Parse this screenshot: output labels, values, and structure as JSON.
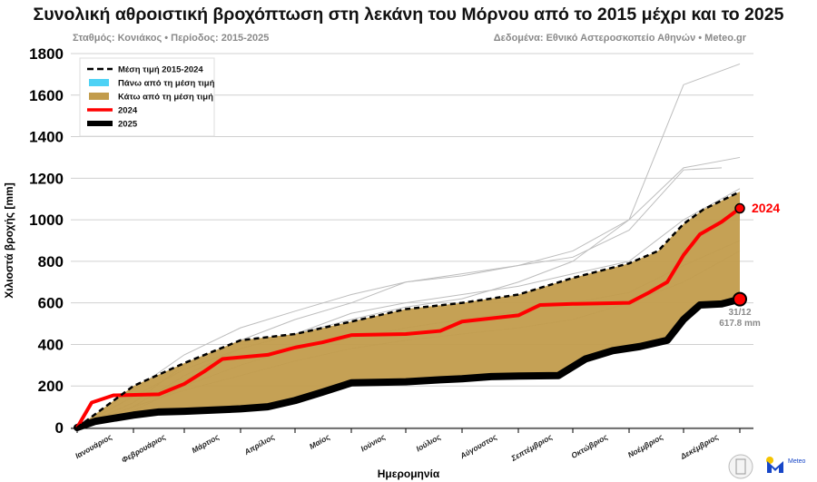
{
  "title": "Συνολική αθροιστική βροχόπτωση στη λεκάνη του Μόρνου από το 2015 μέχρι και το 2025",
  "subtitle_left": "Σταθμός: Κονιάκος • Περίοδος: 2015-2025",
  "subtitle_right": "Δεδομένα: Εθνικό Αστεροσκοπείο Αθηνών • Meteo.gr",
  "logo_text": "Meteo",
  "chart_data": {
    "type": "line",
    "xlabel": "Ημερομηνία",
    "ylabel": "Χιλιοστά βροχής [mm]",
    "ylim": [
      0,
      1800
    ],
    "yticks": [
      0,
      200,
      400,
      600,
      800,
      1000,
      1200,
      1400,
      1600,
      1800
    ],
    "grid": true,
    "legend_position": "top-left",
    "x_tick_labels": [
      "Ιανουάριος",
      "Φεβρουάριος",
      "Μάρτιος",
      "Απρίλιος",
      "Μαίος",
      "Ιούνιος",
      "Ιούλιος",
      "Αύγουστος",
      "Σεπτέμβριος",
      "Οκτώβριος",
      "Νοέμβριος",
      "Δεκέμβριος"
    ],
    "legend": [
      {
        "label": "Μέση τιμή 2015-2024",
        "style": "dashed",
        "color": "#000000"
      },
      {
        "label": "Πάνω από τη μέση τιμή",
        "style": "fill",
        "color": "#4dd2f5"
      },
      {
        "label": "Κάτω από τη μέση τιμή",
        "style": "fill",
        "color": "#c29c4c"
      },
      {
        "label": "2024",
        "style": "line",
        "color": "#ff0000"
      },
      {
        "label": "2025",
        "style": "line",
        "color": "#000000"
      }
    ],
    "mean": {
      "day": [
        0,
        31,
        59,
        90,
        120,
        151,
        181,
        212,
        243,
        273,
        304,
        320,
        334,
        345,
        365
      ],
      "value": [
        0,
        200,
        310,
        420,
        450,
        510,
        570,
        600,
        640,
        720,
        790,
        850,
        980,
        1050,
        1135
      ]
    },
    "series_2024": {
      "day": [
        0,
        8,
        20,
        45,
        59,
        70,
        80,
        105,
        120,
        135,
        151,
        181,
        200,
        212,
        243,
        255,
        273,
        304,
        315,
        325,
        334,
        343,
        355,
        365
      ],
      "value": [
        0,
        120,
        155,
        160,
        210,
        270,
        330,
        350,
        385,
        410,
        445,
        450,
        465,
        510,
        540,
        590,
        595,
        600,
        650,
        700,
        830,
        930,
        990,
        1055
      ]
    },
    "series_2025": {
      "day": [
        0,
        10,
        31,
        45,
        59,
        90,
        105,
        120,
        135,
        151,
        181,
        200,
        212,
        228,
        243,
        265,
        280,
        295,
        310,
        325,
        334,
        343,
        355,
        365
      ],
      "value": [
        0,
        30,
        60,
        75,
        78,
        90,
        100,
        130,
        170,
        215,
        220,
        230,
        235,
        245,
        248,
        250,
        330,
        370,
        390,
        420,
        520,
        590,
        595,
        617.8
      ]
    },
    "other_years": [
      {
        "day": [
          0,
          31,
          59,
          90,
          120,
          151,
          181,
          212,
          243,
          273,
          304,
          334,
          365
        ],
        "value": [
          0,
          150,
          280,
          380,
          450,
          520,
          580,
          620,
          700,
          800,
          1000,
          1650,
          1750
        ]
      },
      {
        "day": [
          0,
          31,
          59,
          90,
          120,
          151,
          181,
          212,
          243,
          273,
          304,
          334,
          365
        ],
        "value": [
          0,
          180,
          350,
          480,
          560,
          640,
          700,
          730,
          780,
          850,
          1000,
          1250,
          1300
        ]
      },
      {
        "day": [
          0,
          31,
          59,
          90,
          120,
          151,
          181,
          212,
          243,
          273,
          304,
          334,
          355
        ],
        "value": [
          0,
          120,
          300,
          420,
          520,
          600,
          700,
          740,
          780,
          820,
          950,
          1240,
          1250
        ]
      },
      {
        "day": [
          0,
          31,
          59,
          90,
          120,
          151,
          181,
          212,
          243,
          273,
          304,
          334,
          365
        ],
        "value": [
          0,
          100,
          250,
          380,
          450,
          550,
          600,
          640,
          680,
          740,
          800,
          1000,
          1150
        ]
      },
      {
        "day": [
          0,
          31,
          59,
          90,
          120,
          151,
          181,
          212,
          243,
          273,
          304,
          334,
          365
        ],
        "value": [
          0,
          80,
          200,
          300,
          380,
          430,
          480,
          520,
          560,
          600,
          650,
          780,
          900
        ]
      },
      {
        "day": [
          0,
          31,
          59,
          90,
          120,
          151,
          181,
          212,
          243,
          273,
          304,
          334,
          365
        ],
        "value": [
          0,
          100,
          180,
          250,
          320,
          380,
          420,
          450,
          480,
          520,
          600,
          700,
          850
        ]
      }
    ],
    "annotations": {
      "label_2024": "2024",
      "end_date": "31/12",
      "end_value": "617.8 mm"
    }
  }
}
